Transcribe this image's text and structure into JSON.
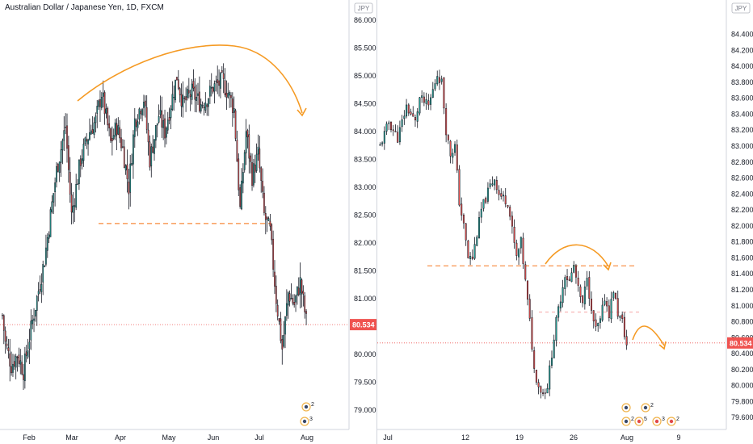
{
  "title": "Australian Dollar / Japanese Yen, 1D, FXCM",
  "unit": "JPY",
  "last_price": "80.534",
  "colors": {
    "up": "#26a69a",
    "down": "#ef5350",
    "candle": "#131722",
    "annotation": "#f59a23",
    "price_tag": "#ef5350",
    "support": "#f7883a"
  },
  "chart_data": [
    {
      "type": "candlestick",
      "timeframe": "1D",
      "ylim": [
        78.65,
        86.25
      ],
      "x_tick_labels": [
        "Feb",
        "Mar",
        "Apr",
        "May",
        "Jun",
        "Jul",
        "Aug"
      ],
      "y_tick_labels": [
        "79.000",
        "79.500",
        "80.000",
        "80.500",
        "81.000",
        "81.500",
        "82.000",
        "82.500",
        "83.000",
        "83.500",
        "84.000",
        "84.500",
        "85.000",
        "85.500",
        "86.000"
      ],
      "current_price": 80.534,
      "support_level": 82.35,
      "path_keypoints": [
        [
          0,
          80.7
        ],
        [
          2,
          80.2
        ],
        [
          6,
          79.8
        ],
        [
          10,
          80.0
        ],
        [
          14,
          79.7
        ],
        [
          20,
          80.6
        ],
        [
          28,
          81.7
        ],
        [
          36,
          83.3
        ],
        [
          42,
          84.1
        ],
        [
          46,
          82.5
        ],
        [
          52,
          83.5
        ],
        [
          58,
          84.0
        ],
        [
          62,
          84.2
        ],
        [
          66,
          84.7
        ],
        [
          72,
          83.8
        ],
        [
          76,
          84.1
        ],
        [
          80,
          83.7
        ],
        [
          84,
          83.0
        ],
        [
          88,
          84.2
        ],
        [
          94,
          84.6
        ],
        [
          98,
          83.5
        ],
        [
          104,
          84.3
        ],
        [
          108,
          84.0
        ],
        [
          112,
          84.5
        ],
        [
          116,
          85.0
        ],
        [
          120,
          84.5
        ],
        [
          126,
          84.7
        ],
        [
          132,
          84.5
        ],
        [
          136,
          84.6
        ],
        [
          140,
          84.8
        ],
        [
          146,
          84.9
        ],
        [
          150,
          84.7
        ],
        [
          154,
          84.4
        ],
        [
          158,
          82.6
        ],
        [
          162,
          84.0
        ],
        [
          166,
          83.2
        ],
        [
          170,
          83.6
        ],
        [
          174,
          82.5
        ],
        [
          178,
          82.2
        ],
        [
          182,
          81.0
        ],
        [
          186,
          80.1
        ],
        [
          190,
          81.1
        ],
        [
          194,
          80.9
        ],
        [
          198,
          81.3
        ],
        [
          202,
          80.6
        ]
      ]
    },
    {
      "type": "candlestick",
      "timeframe": "intraday",
      "ylim": [
        79.45,
        84.75
      ],
      "x_tick_labels": [
        "Jul",
        "12",
        "19",
        "26",
        "Aug",
        "9"
      ],
      "y_tick_labels": [
        "79.600",
        "79.800",
        "80.000",
        "80.200",
        "80.400",
        "80.600",
        "80.800",
        "81.000",
        "81.200",
        "81.400",
        "81.600",
        "81.800",
        "82.000",
        "82.200",
        "82.400",
        "82.600",
        "82.800",
        "83.000",
        "83.200",
        "83.400",
        "83.600",
        "83.800",
        "84.000",
        "84.200",
        "84.400"
      ],
      "current_price": 80.534,
      "support_level": 81.5,
      "secondary_level": 80.92,
      "path_keypoints": [
        [
          0,
          83.0
        ],
        [
          4,
          83.3
        ],
        [
          8,
          83.1
        ],
        [
          12,
          83.5
        ],
        [
          16,
          83.3
        ],
        [
          18,
          83.6
        ],
        [
          22,
          83.5
        ],
        [
          26,
          83.9
        ],
        [
          28,
          83.8
        ],
        [
          30,
          83.2
        ],
        [
          32,
          82.9
        ],
        [
          34,
          83.0
        ],
        [
          36,
          82.3
        ],
        [
          38,
          82.0
        ],
        [
          40,
          81.6
        ],
        [
          42,
          81.6
        ],
        [
          44,
          81.9
        ],
        [
          46,
          82.2
        ],
        [
          50,
          82.5
        ],
        [
          52,
          82.6
        ],
        [
          54,
          82.4
        ],
        [
          58,
          82.3
        ],
        [
          62,
          81.6
        ],
        [
          64,
          81.8
        ],
        [
          66,
          81.3
        ],
        [
          68,
          80.8
        ],
        [
          70,
          80.2
        ],
        [
          72,
          80.0
        ],
        [
          74,
          79.9
        ],
        [
          76,
          80.0
        ],
        [
          78,
          80.4
        ],
        [
          80,
          80.8
        ],
        [
          82,
          81.1
        ],
        [
          84,
          81.4
        ],
        [
          86,
          81.3
        ],
        [
          88,
          81.5
        ],
        [
          90,
          81.2
        ],
        [
          92,
          81.0
        ],
        [
          94,
          81.4
        ],
        [
          96,
          80.9
        ],
        [
          98,
          80.7
        ],
        [
          100,
          80.8
        ],
        [
          102,
          81.1
        ],
        [
          104,
          80.9
        ],
        [
          106,
          81.2
        ],
        [
          108,
          80.9
        ],
        [
          110,
          80.8
        ],
        [
          112,
          80.5
        ]
      ]
    }
  ],
  "events_left": [
    {
      "badge": "2"
    },
    {
      "badge": "3"
    }
  ],
  "events_right": [
    {
      "badge": "2"
    },
    {
      "badge": "2"
    },
    {
      "badge": "5"
    },
    {
      "badge": "3"
    },
    {
      "badge": "2"
    }
  ]
}
